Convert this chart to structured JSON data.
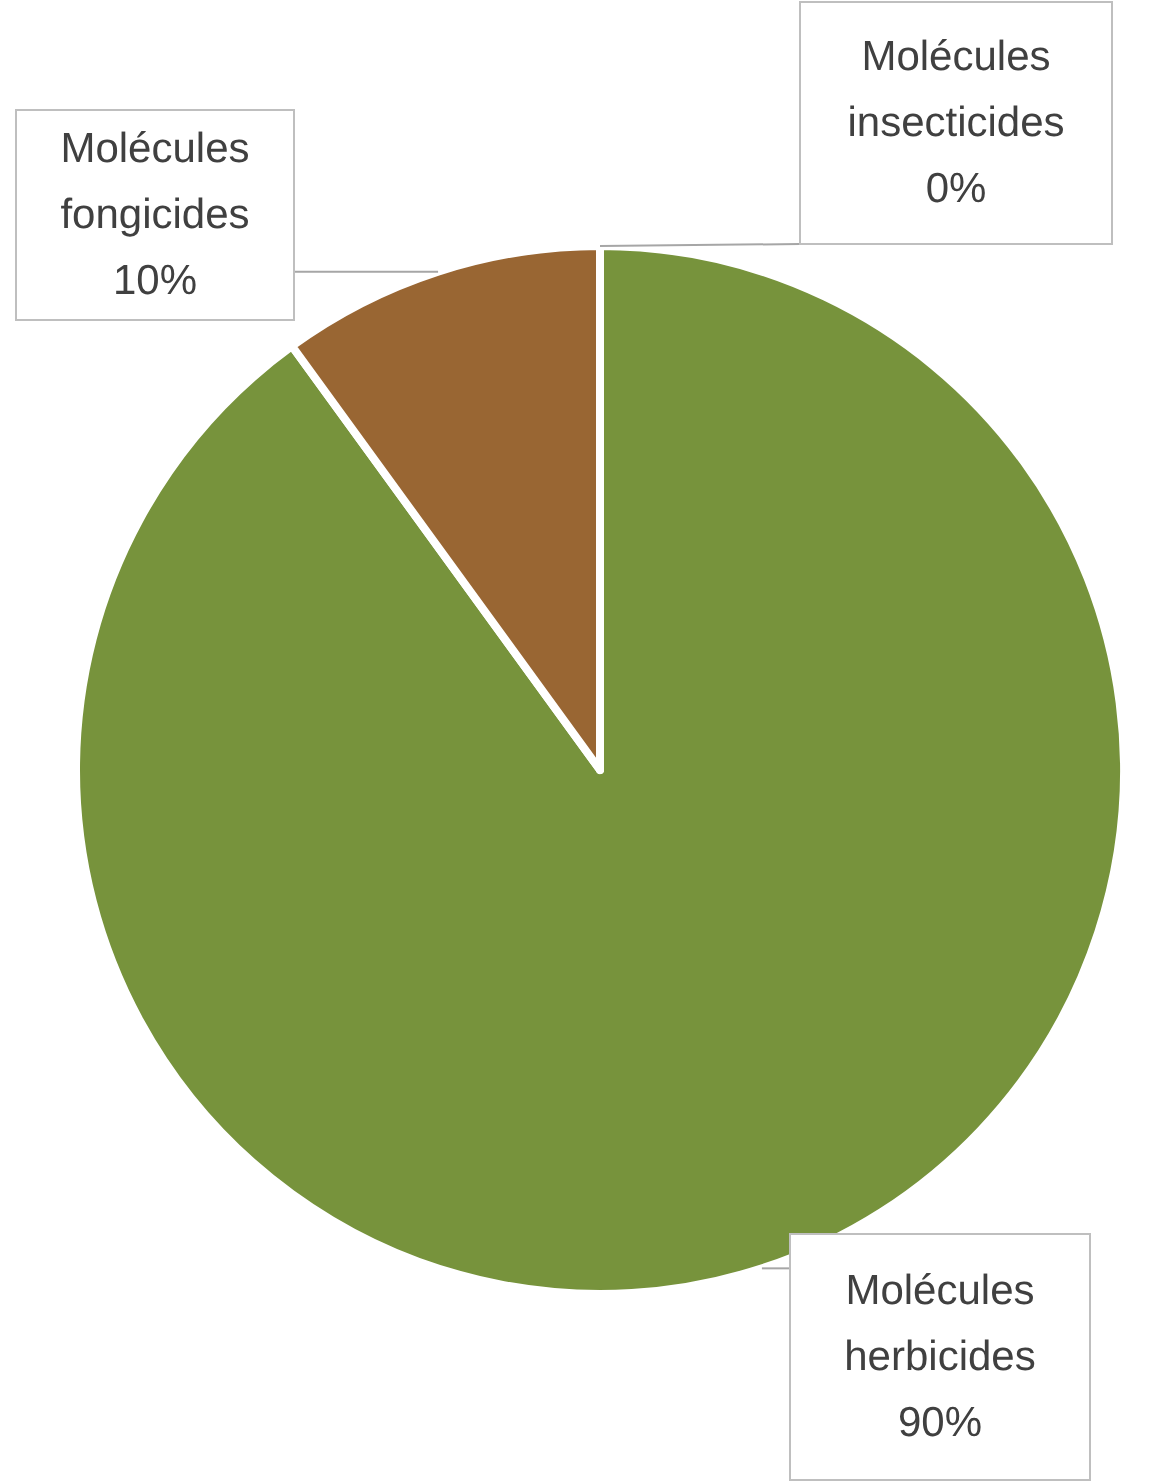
{
  "chart_data": {
    "type": "pie",
    "categories": [
      "Molécules herbicides",
      "Molécules fongicides",
      "Molécules insecticides"
    ],
    "values": [
      90,
      10,
      0
    ],
    "colors": [
      "#77933c",
      "#996633",
      "#4f81bd"
    ],
    "value_labels": [
      "90%",
      "10%",
      "0%"
    ]
  }
}
